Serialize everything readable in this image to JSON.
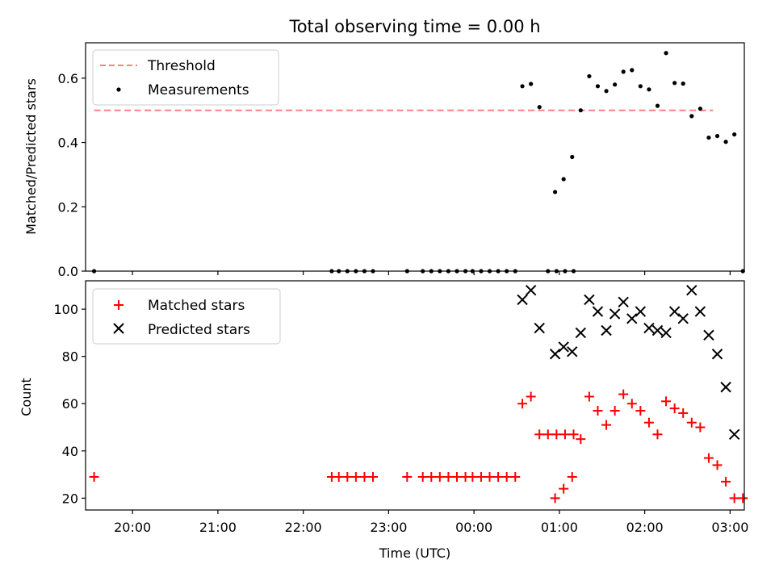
{
  "chart_data": [
    {
      "type": "scatter",
      "title": "Total observing time = 0.00 h",
      "ylabel": "Matched/Predicted stars",
      "xlabel": "",
      "xlim": [
        "19:27",
        "03:10"
      ],
      "ylim": [
        0,
        0.71
      ],
      "yticks": [
        "0.0",
        "0.2",
        "0.4",
        "0.6"
      ],
      "legend": "upper-left",
      "threshold": {
        "name": "Threshold",
        "value": 0.5,
        "x_range": [
          "19:33",
          "02:48"
        ],
        "color": "#ff8080",
        "style": "dashed"
      },
      "series": [
        {
          "name": "Measurements",
          "marker": "dot",
          "color": "#000000",
          "points": [
            [
              "19:33",
              0.0
            ],
            [
              "22:20",
              0.0
            ],
            [
              "22:25",
              0.0
            ],
            [
              "22:31",
              0.0
            ],
            [
              "22:37",
              0.0
            ],
            [
              "22:43",
              0.0
            ],
            [
              "22:49",
              0.0
            ],
            [
              "23:13",
              0.0
            ],
            [
              "23:24",
              0.0
            ],
            [
              "23:30",
              0.0
            ],
            [
              "23:36",
              0.0
            ],
            [
              "23:42",
              0.0
            ],
            [
              "23:48",
              0.0
            ],
            [
              "23:54",
              0.0
            ],
            [
              "23:59",
              0.0
            ],
            [
              "00:05",
              0.0
            ],
            [
              "00:11",
              0.0
            ],
            [
              "00:17",
              0.0
            ],
            [
              "00:23",
              0.0
            ],
            [
              "00:29",
              0.0
            ],
            [
              "00:34",
              0.575
            ],
            [
              "00:40",
              0.582
            ],
            [
              "00:46",
              0.51
            ],
            [
              "00:52",
              0.0
            ],
            [
              "00:58",
              0.0
            ],
            [
              "01:04",
              0.0
            ],
            [
              "01:10",
              0.0
            ],
            [
              "00:57",
              0.246
            ],
            [
              "01:03",
              0.286
            ],
            [
              "01:09",
              0.355
            ],
            [
              "01:15",
              0.5
            ],
            [
              "01:21",
              0.606
            ],
            [
              "01:27",
              0.575
            ],
            [
              "01:33",
              0.56
            ],
            [
              "01:39",
              0.58
            ],
            [
              "01:45",
              0.62
            ],
            [
              "01:51",
              0.625
            ],
            [
              "01:57",
              0.575
            ],
            [
              "02:03",
              0.565
            ],
            [
              "02:09",
              0.514
            ],
            [
              "02:15",
              0.678
            ],
            [
              "02:21",
              0.585
            ],
            [
              "02:27",
              0.583
            ],
            [
              "02:33",
              0.482
            ],
            [
              "02:39",
              0.505
            ],
            [
              "02:45",
              0.415
            ],
            [
              "02:51",
              0.42
            ],
            [
              "02:57",
              0.402
            ],
            [
              "03:03",
              0.425
            ],
            [
              "03:09",
              0.0
            ]
          ]
        }
      ]
    },
    {
      "type": "scatter",
      "title": "",
      "ylabel": "Count",
      "xlabel": "Time (UTC)",
      "xlim": [
        "19:27",
        "03:10"
      ],
      "ylim": [
        15,
        112
      ],
      "yticks": [
        "20",
        "40",
        "60",
        "80",
        "100"
      ],
      "xticks": [
        "20:00",
        "21:00",
        "22:00",
        "23:00",
        "00:00",
        "01:00",
        "02:00",
        "03:00"
      ],
      "legend": "upper-left",
      "series": [
        {
          "name": "Matched stars",
          "marker": "plus",
          "color": "#ff0000",
          "points": [
            [
              "19:33",
              29
            ],
            [
              "22:20",
              29
            ],
            [
              "22:25",
              29
            ],
            [
              "22:31",
              29
            ],
            [
              "22:37",
              29
            ],
            [
              "22:43",
              29
            ],
            [
              "22:49",
              29
            ],
            [
              "23:13",
              29
            ],
            [
              "23:24",
              29
            ],
            [
              "23:30",
              29
            ],
            [
              "23:36",
              29
            ],
            [
              "23:42",
              29
            ],
            [
              "23:48",
              29
            ],
            [
              "23:54",
              29
            ],
            [
              "23:59",
              29
            ],
            [
              "00:05",
              29
            ],
            [
              "00:11",
              29
            ],
            [
              "00:17",
              29
            ],
            [
              "00:23",
              29
            ],
            [
              "00:29",
              29
            ],
            [
              "00:34",
              60
            ],
            [
              "00:40",
              63
            ],
            [
              "00:46",
              47
            ],
            [
              "00:52",
              47
            ],
            [
              "00:58",
              47
            ],
            [
              "01:04",
              47
            ],
            [
              "01:10",
              47
            ],
            [
              "00:57",
              20
            ],
            [
              "01:03",
              24
            ],
            [
              "01:09",
              29
            ],
            [
              "01:15",
              45
            ],
            [
              "01:21",
              63
            ],
            [
              "01:27",
              57
            ],
            [
              "01:33",
              51
            ],
            [
              "01:39",
              57
            ],
            [
              "01:45",
              64
            ],
            [
              "01:51",
              60
            ],
            [
              "01:57",
              57
            ],
            [
              "02:03",
              52
            ],
            [
              "02:09",
              47
            ],
            [
              "02:15",
              61
            ],
            [
              "02:21",
              58
            ],
            [
              "02:27",
              56
            ],
            [
              "02:33",
              52
            ],
            [
              "02:39",
              50
            ],
            [
              "02:45",
              37
            ],
            [
              "02:51",
              34
            ],
            [
              "02:57",
              27
            ],
            [
              "03:03",
              20
            ],
            [
              "03:09",
              20
            ]
          ]
        },
        {
          "name": "Predicted stars",
          "marker": "x",
          "color": "#000000",
          "points": [
            [
              "00:34",
              104
            ],
            [
              "00:40",
              108
            ],
            [
              "00:46",
              92
            ],
            [
              "00:57",
              81
            ],
            [
              "01:03",
              84
            ],
            [
              "01:09",
              82
            ],
            [
              "01:15",
              90
            ],
            [
              "01:21",
              104
            ],
            [
              "01:27",
              99
            ],
            [
              "01:33",
              91
            ],
            [
              "01:39",
              98
            ],
            [
              "01:45",
              103
            ],
            [
              "01:51",
              96
            ],
            [
              "01:57",
              99
            ],
            [
              "02:03",
              92
            ],
            [
              "02:09",
              91
            ],
            [
              "02:15",
              90
            ],
            [
              "02:21",
              99
            ],
            [
              "02:27",
              96
            ],
            [
              "02:33",
              108
            ],
            [
              "02:39",
              99
            ],
            [
              "02:45",
              89
            ],
            [
              "02:51",
              81
            ],
            [
              "02:57",
              67
            ],
            [
              "03:03",
              47
            ]
          ]
        }
      ]
    }
  ]
}
